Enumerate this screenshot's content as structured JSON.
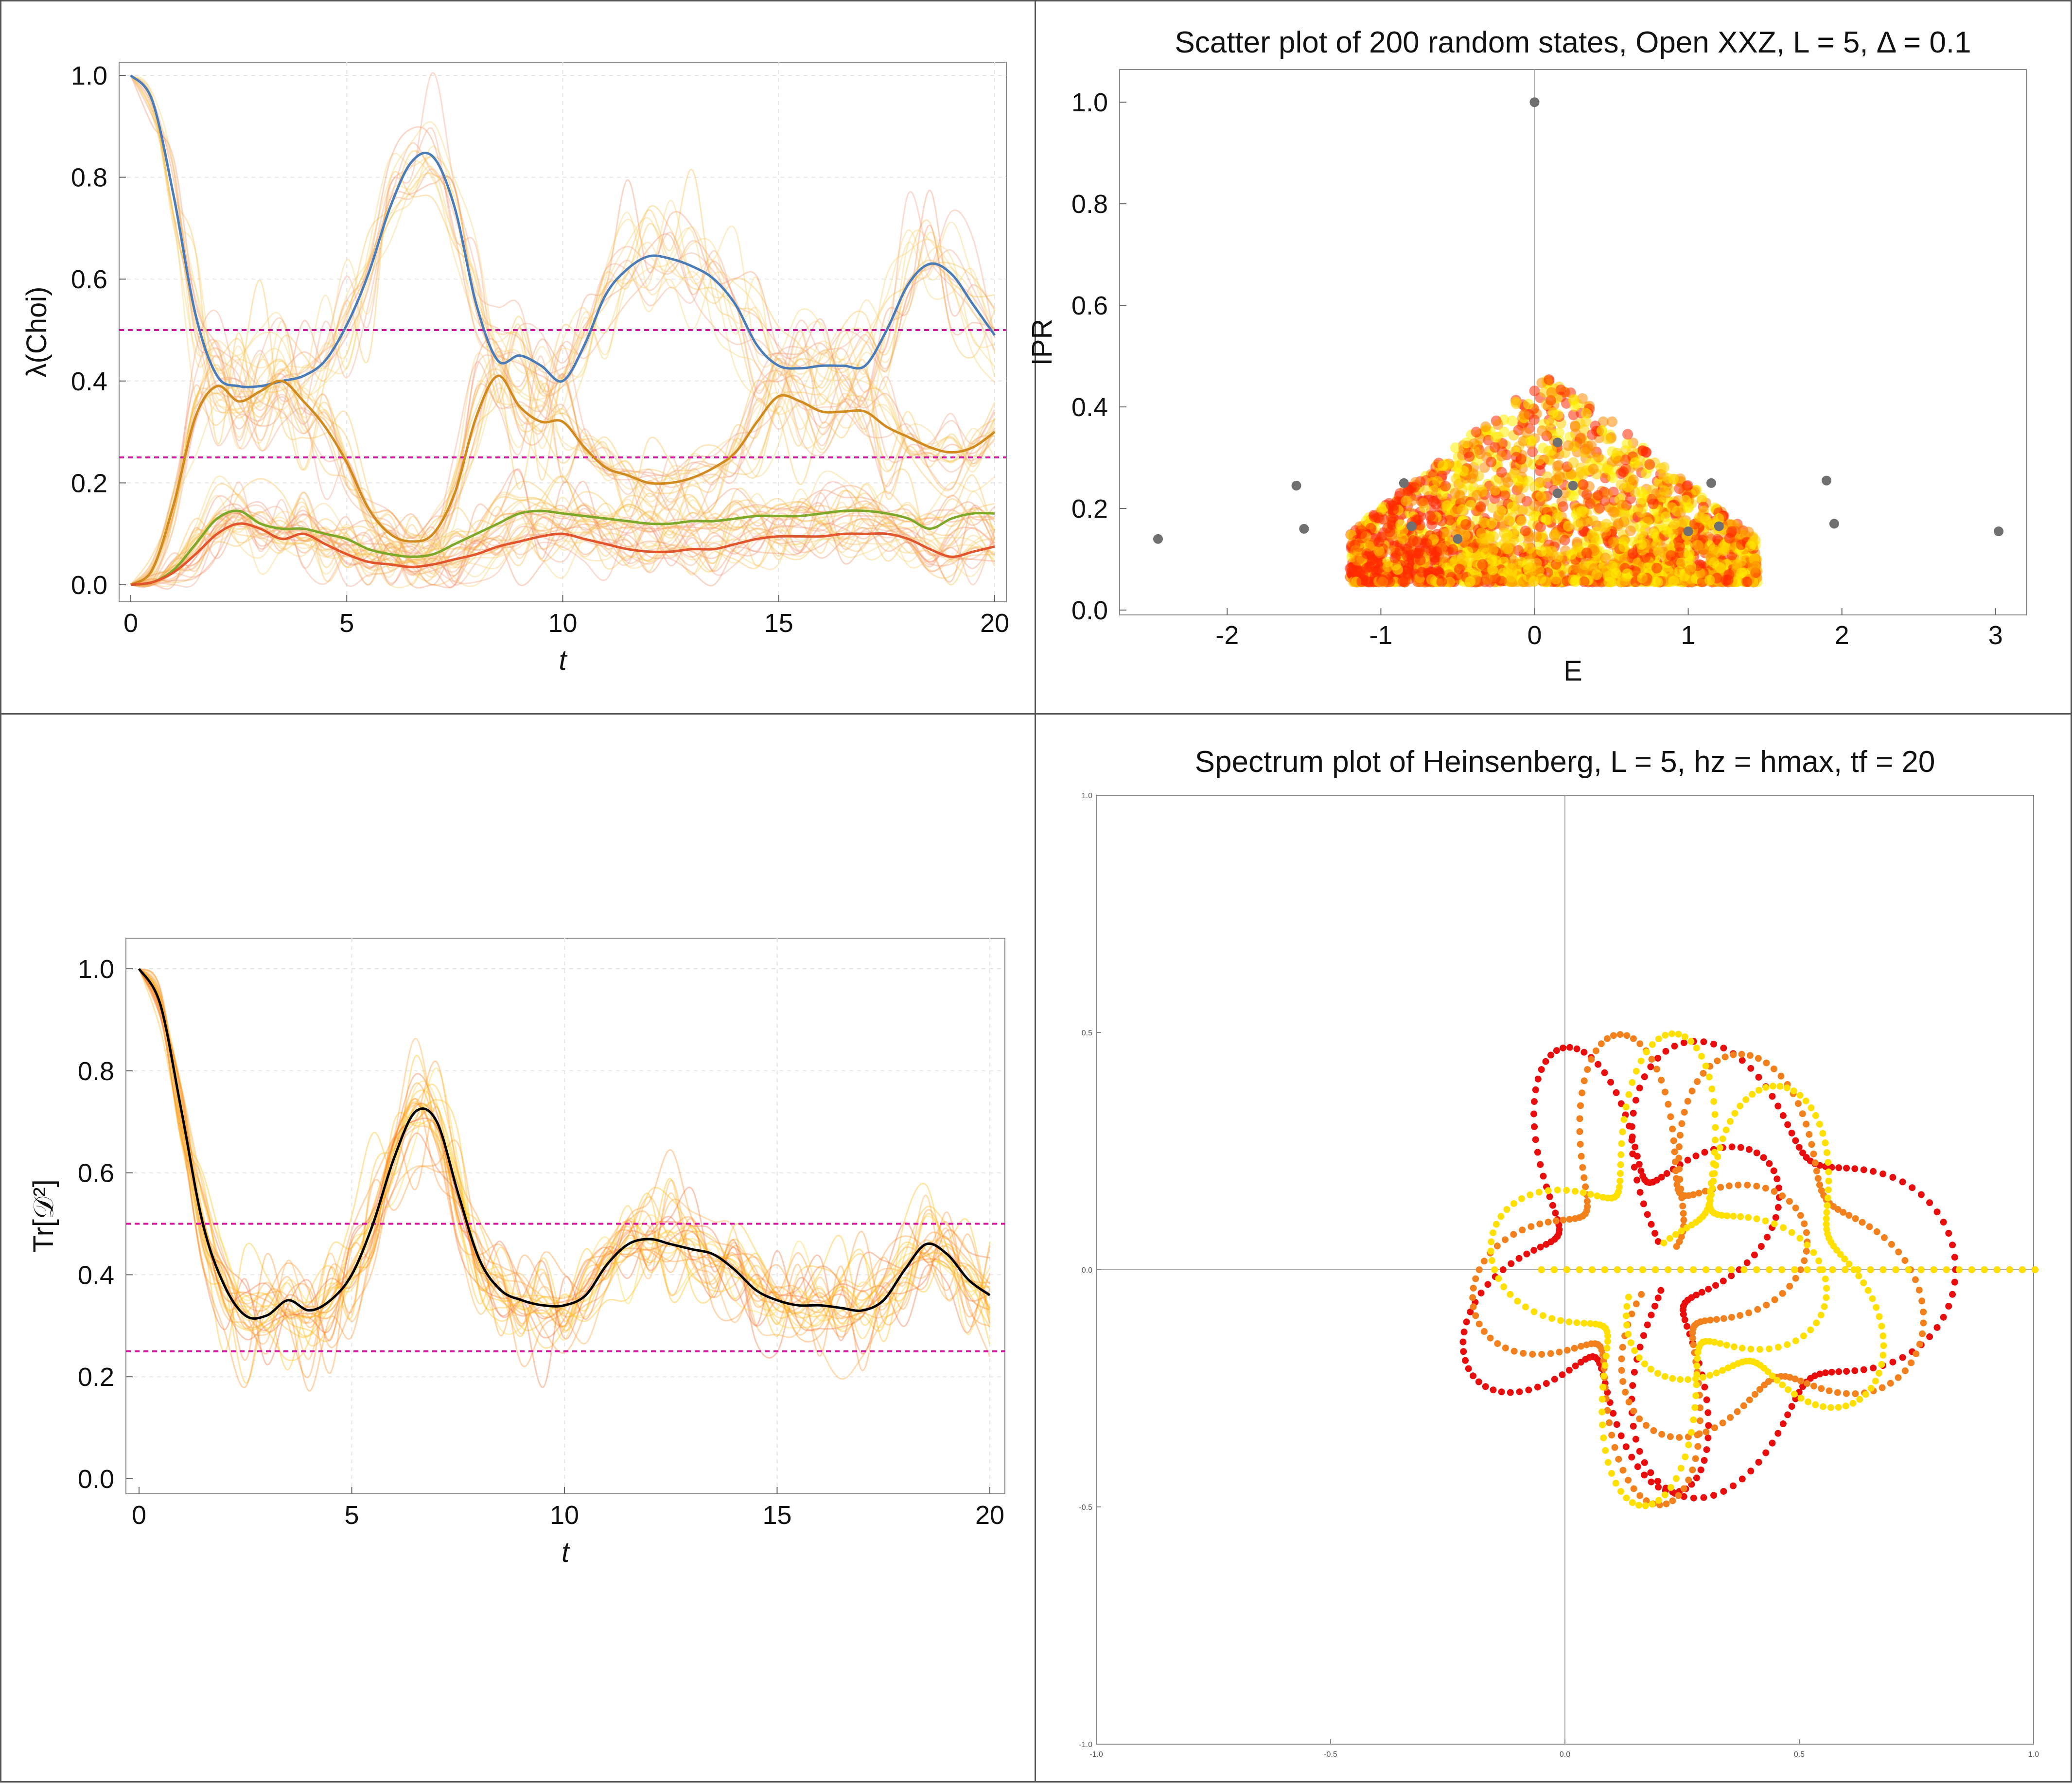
{
  "chart_data": [
    {
      "type": "line",
      "ylabel": "λ(Choi)",
      "xlabel": "t",
      "xlim": [
        0,
        20
      ],
      "ylim": [
        0,
        1.0
      ],
      "xticks": [
        0,
        5,
        10,
        15,
        20
      ],
      "yticks": [
        0.0,
        0.2,
        0.4,
        0.6,
        0.8,
        1.0
      ],
      "grid": true,
      "reference_lines": [
        0.5,
        0.25
      ],
      "x": [
        0,
        0.5,
        1,
        1.5,
        2,
        2.5,
        3,
        3.5,
        4,
        4.5,
        5,
        5.5,
        6,
        6.5,
        7,
        7.5,
        8,
        8.5,
        9,
        9.5,
        10,
        10.5,
        11,
        11.5,
        12,
        12.5,
        13,
        13.5,
        14,
        14.5,
        15,
        15.5,
        16,
        16.5,
        17,
        17.5,
        18,
        18.5,
        19,
        19.5,
        20
      ],
      "series": [
        {
          "color": "#4a7db8",
          "values": [
            1.0,
            0.95,
            0.76,
            0.53,
            0.41,
            0.39,
            0.39,
            0.4,
            0.41,
            0.44,
            0.51,
            0.61,
            0.74,
            0.83,
            0.84,
            0.74,
            0.55,
            0.44,
            0.45,
            0.43,
            0.4,
            0.47,
            0.57,
            0.62,
            0.645,
            0.64,
            0.625,
            0.6,
            0.55,
            0.47,
            0.43,
            0.425,
            0.43,
            0.43,
            0.43,
            0.5,
            0.59,
            0.63,
            0.61,
            0.55,
            0.49
          ]
        },
        {
          "color": "#d18a1e",
          "values": [
            0.0,
            0.03,
            0.16,
            0.33,
            0.39,
            0.36,
            0.38,
            0.4,
            0.36,
            0.31,
            0.24,
            0.15,
            0.1,
            0.085,
            0.1,
            0.18,
            0.33,
            0.41,
            0.35,
            0.32,
            0.32,
            0.27,
            0.23,
            0.215,
            0.2,
            0.2,
            0.21,
            0.23,
            0.26,
            0.32,
            0.37,
            0.36,
            0.34,
            0.34,
            0.34,
            0.31,
            0.29,
            0.27,
            0.26,
            0.27,
            0.3
          ]
        },
        {
          "color": "#7da82a",
          "values": [
            0.0,
            0.005,
            0.03,
            0.08,
            0.13,
            0.145,
            0.12,
            0.11,
            0.11,
            0.1,
            0.09,
            0.07,
            0.06,
            0.055,
            0.06,
            0.08,
            0.1,
            0.12,
            0.14,
            0.145,
            0.14,
            0.135,
            0.13,
            0.125,
            0.12,
            0.12,
            0.125,
            0.125,
            0.13,
            0.135,
            0.135,
            0.135,
            0.14,
            0.145,
            0.145,
            0.14,
            0.13,
            0.11,
            0.13,
            0.14,
            0.14
          ]
        },
        {
          "color": "#e2542c",
          "values": [
            0.0,
            0.005,
            0.025,
            0.06,
            0.1,
            0.12,
            0.11,
            0.09,
            0.1,
            0.08,
            0.06,
            0.045,
            0.04,
            0.035,
            0.04,
            0.05,
            0.06,
            0.075,
            0.085,
            0.095,
            0.1,
            0.09,
            0.08,
            0.07,
            0.065,
            0.065,
            0.07,
            0.07,
            0.08,
            0.09,
            0.095,
            0.095,
            0.095,
            0.1,
            0.1,
            0.1,
            0.09,
            0.07,
            0.055,
            0.065,
            0.075
          ]
        }
      ]
    },
    {
      "type": "scatter",
      "title": "Scatter plot of 200 random states, Open XXZ, L = 5, Δ = 0.1",
      "xlabel": "E",
      "ylabel": "IPR",
      "xlim": [
        -2.7,
        3.2
      ],
      "ylim": [
        0,
        1.05
      ],
      "xticks": [
        -2,
        -1,
        0,
        1,
        2,
        3
      ],
      "yticks": [
        0.0,
        0.2,
        0.4,
        0.6,
        0.8,
        1.0
      ],
      "points_gray": {
        "color": "#707070",
        "x": [
          0.0,
          -2.45,
          -1.55,
          -1.5,
          -0.85,
          -0.8,
          -0.5,
          0.15,
          0.15,
          0.25,
          1.15,
          1.0,
          1.2,
          1.9,
          1.95,
          3.02
        ],
        "y": [
          1.0,
          0.14,
          0.245,
          0.16,
          0.25,
          0.165,
          0.14,
          0.33,
          0.23,
          0.245,
          0.25,
          0.155,
          0.165,
          0.255,
          0.17,
          0.155
        ]
      },
      "cloud_colors": [
        "#ff2a00",
        "#ff8c00",
        "#ffd000",
        "#ffee00"
      ]
    },
    {
      "type": "line",
      "ylabel": "Tr[𝒟²]",
      "xlabel": "t",
      "xlim": [
        0,
        20
      ],
      "ylim": [
        0,
        1.0
      ],
      "xticks": [
        0,
        5,
        10,
        15,
        20
      ],
      "yticks": [
        0.0,
        0.2,
        0.4,
        0.6,
        0.8,
        1.0
      ],
      "grid": true,
      "reference_lines": [
        0.5,
        0.25
      ],
      "x": [
        0,
        0.5,
        1,
        1.5,
        2,
        2.5,
        3,
        3.5,
        4,
        4.5,
        5,
        5.5,
        6,
        6.5,
        7,
        7.5,
        8,
        8.5,
        9,
        9.5,
        10,
        10.5,
        11,
        11.5,
        12,
        12.5,
        13,
        13.5,
        14,
        14.5,
        15,
        15.5,
        16,
        16.5,
        17,
        17.5,
        18,
        18.5,
        19,
        19.5,
        20
      ],
      "series": [
        {
          "color": "#000000",
          "values": [
            1.0,
            0.93,
            0.72,
            0.5,
            0.38,
            0.32,
            0.32,
            0.35,
            0.33,
            0.35,
            0.4,
            0.5,
            0.63,
            0.72,
            0.7,
            0.56,
            0.43,
            0.37,
            0.35,
            0.34,
            0.34,
            0.36,
            0.42,
            0.46,
            0.47,
            0.46,
            0.45,
            0.44,
            0.41,
            0.37,
            0.35,
            0.34,
            0.34,
            0.335,
            0.33,
            0.35,
            0.41,
            0.46,
            0.44,
            0.39,
            0.36
          ]
        }
      ]
    },
    {
      "type": "scatter",
      "title": "Spectrum plot of Heinsenberg, L = 5, hz = hmax, tf = 20",
      "xlim": [
        -1.0,
        1.0
      ],
      "ylim": [
        -1.0,
        1.0
      ],
      "xticks": [
        -1.0,
        -0.5,
        0.0,
        0.5,
        1.0
      ],
      "yticks": [
        -1.0,
        -0.5,
        0.0,
        0.5,
        1.0
      ],
      "series_colors": [
        "#e80e0e",
        "#f2811d",
        "#ffe000"
      ]
    }
  ]
}
